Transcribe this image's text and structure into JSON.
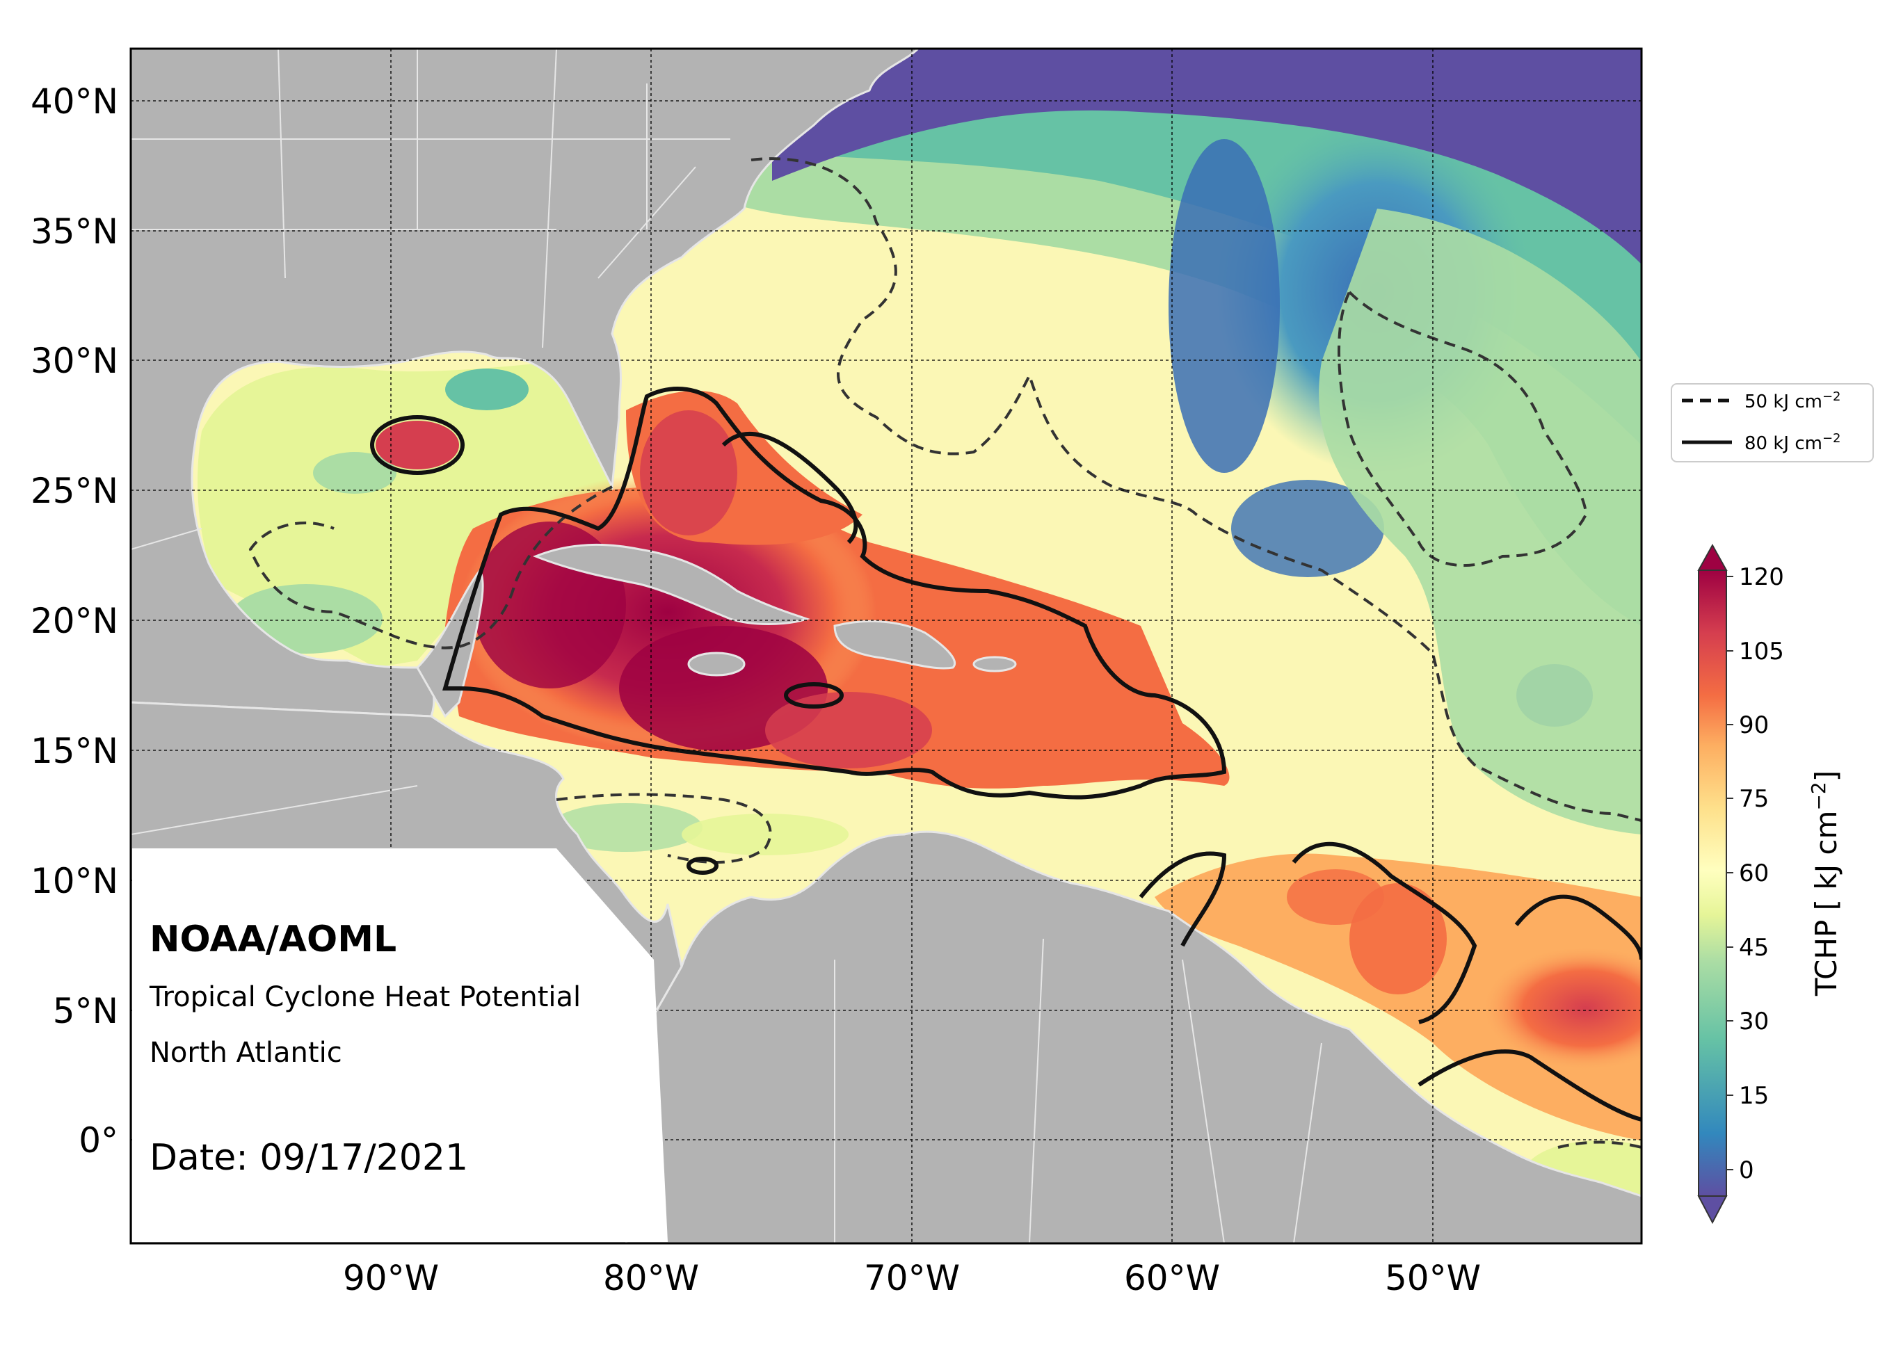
{
  "map": {
    "org": "NOAA/AOML",
    "product": "Tropical Cyclone Heat Potential",
    "region": "North Atlantic",
    "date_label": "Date: 09/17/2021",
    "lon_ticks": [
      "90°W",
      "80°W",
      "70°W",
      "60°W",
      "50°W"
    ],
    "lat_ticks": [
      "40°N",
      "35°N",
      "30°N",
      "25°N",
      "20°N",
      "15°N",
      "10°N",
      "5°N",
      "0°"
    ],
    "extent": {
      "lon": [
        -100,
        -42
      ],
      "lat": [
        -4,
        42
      ]
    }
  },
  "legend": {
    "items": [
      {
        "label": "50 kJ cm",
        "sup": "−2",
        "style": "dashed"
      },
      {
        "label": "80 kJ cm",
        "sup": "−2",
        "style": "solid"
      }
    ]
  },
  "colorbar": {
    "label": "TCHP [ kJ cm",
    "label_sup": "−2",
    "label_end": "]",
    "ticks": [
      "120",
      "105",
      "90",
      "75",
      "60",
      "45",
      "30",
      "15",
      "0"
    ],
    "range": [
      0,
      120
    ],
    "extend": "both",
    "colors": [
      "#5e4fa2",
      "#3288bd",
      "#66c2a5",
      "#abdda4",
      "#e6f598",
      "#ffffbf",
      "#fee08b",
      "#fdae61",
      "#f46d43",
      "#d53e4f",
      "#9e0142"
    ]
  }
}
